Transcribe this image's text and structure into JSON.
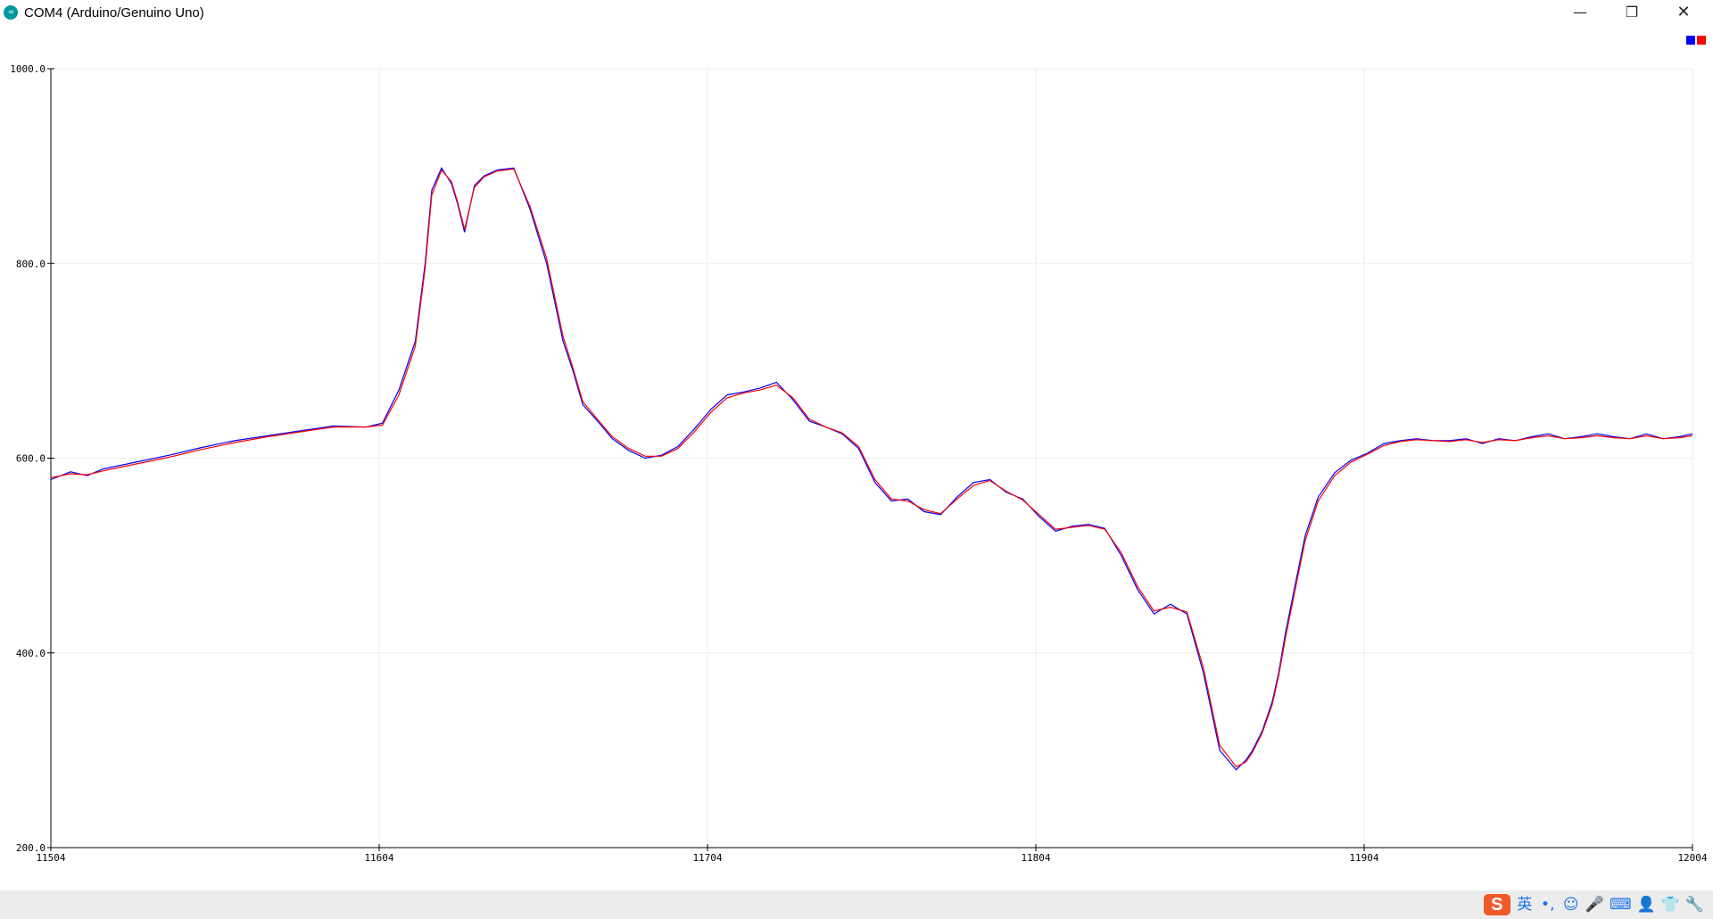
{
  "window": {
    "title": "COM4 (Arduino/Genuino Uno)",
    "app_icon": "arduino-icon",
    "controls": {
      "minimize": "—",
      "maximize": "❐",
      "close": "✕"
    }
  },
  "chart_data": {
    "type": "line",
    "title": "",
    "xlabel": "",
    "ylabel": "",
    "xlim": [
      11504,
      12004
    ],
    "ylim": [
      200,
      1000
    ],
    "x_ticks": [
      "11504",
      "11604",
      "11704",
      "11804",
      "11904",
      "12004"
    ],
    "y_ticks": [
      "1000.0",
      "800.0",
      "600.0",
      "400.0",
      "200.0"
    ],
    "y_tick_values": [
      1000,
      800,
      600,
      400,
      200
    ],
    "x_tick_values": [
      11504,
      11604,
      11704,
      11804,
      11904,
      12004
    ],
    "grid": true,
    "legend_position": "top-right",
    "series": [
      {
        "color": "#0000ff",
        "x": [
          11504,
          11510,
          11515,
          11520,
          11530,
          11540,
          11550,
          11560,
          11570,
          11580,
          11590,
          11600,
          11605,
          11610,
          11615,
          11618,
          11620,
          11623,
          11626,
          11628,
          11630,
          11633,
          11636,
          11640,
          11645,
          11650,
          11655,
          11660,
          11663,
          11666,
          11670,
          11675,
          11680,
          11685,
          11690,
          11695,
          11700,
          11705,
          11710,
          11715,
          11720,
          11725,
          11730,
          11735,
          11740,
          11745,
          11750,
          11755,
          11760,
          11765,
          11770,
          11775,
          11780,
          11785,
          11790,
          11795,
          11800,
          11805,
          11810,
          11815,
          11820,
          11825,
          11830,
          11835,
          11840,
          11845,
          11850,
          11855,
          11860,
          11865,
          11868,
          11870,
          11873,
          11876,
          11878,
          11880,
          11883,
          11886,
          11890,
          11895,
          11900,
          11905,
          11910,
          11915,
          11920,
          11925,
          11930,
          11935,
          11940,
          11945,
          11950,
          11955,
          11960,
          11965,
          11970,
          11975,
          11980,
          11985,
          11990,
          11995,
          12000,
          12004
        ],
        "values": [
          578,
          586,
          582,
          589,
          596,
          603,
          611,
          618,
          623,
          628,
          633,
          632,
          636,
          670,
          720,
          800,
          875,
          898,
          882,
          860,
          832,
          880,
          890,
          896,
          898,
          855,
          800,
          720,
          690,
          655,
          640,
          620,
          608,
          600,
          603,
          612,
          630,
          650,
          665,
          668,
          672,
          678,
          660,
          638,
          632,
          625,
          610,
          575,
          556,
          558,
          545,
          542,
          560,
          575,
          578,
          565,
          558,
          540,
          525,
          530,
          532,
          528,
          500,
          465,
          440,
          450,
          440,
          380,
          300,
          280,
          290,
          300,
          320,
          350,
          380,
          420,
          470,
          520,
          560,
          585,
          598,
          605,
          615,
          618,
          620,
          618,
          618,
          620,
          615,
          620,
          618,
          622,
          625,
          620,
          622,
          625,
          622,
          620,
          625,
          620,
          622,
          625
        ]
      },
      {
        "color": "#ff0000",
        "x": [
          11504,
          11510,
          11515,
          11520,
          11530,
          11540,
          11550,
          11560,
          11570,
          11580,
          11590,
          11600,
          11605,
          11610,
          11615,
          11618,
          11620,
          11623,
          11626,
          11628,
          11630,
          11633,
          11636,
          11640,
          11645,
          11650,
          11655,
          11660,
          11663,
          11666,
          11670,
          11675,
          11680,
          11685,
          11690,
          11695,
          11700,
          11705,
          11710,
          11715,
          11720,
          11725,
          11730,
          11735,
          11740,
          11745,
          11750,
          11755,
          11760,
          11765,
          11770,
          11775,
          11780,
          11785,
          11790,
          11795,
          11800,
          11805,
          11810,
          11815,
          11820,
          11825,
          11830,
          11835,
          11840,
          11845,
          11850,
          11855,
          11860,
          11865,
          11868,
          11870,
          11873,
          11876,
          11878,
          11880,
          11883,
          11886,
          11890,
          11895,
          11900,
          11905,
          11910,
          11915,
          11920,
          11925,
          11930,
          11935,
          11940,
          11945,
          11950,
          11955,
          11960,
          11965,
          11970,
          11975,
          11980,
          11985,
          11990,
          11995,
          12000,
          12004
        ],
        "values": [
          580,
          584,
          583,
          587,
          594,
          601,
          609,
          616,
          622,
          627,
          632,
          632,
          634,
          665,
          715,
          795,
          870,
          896,
          884,
          862,
          835,
          878,
          889,
          895,
          897,
          858,
          805,
          725,
          693,
          658,
          642,
          622,
          610,
          602,
          602,
          610,
          627,
          647,
          662,
          667,
          670,
          675,
          662,
          640,
          632,
          626,
          612,
          578,
          558,
          556,
          547,
          543,
          558,
          572,
          577,
          566,
          557,
          542,
          527,
          529,
          531,
          527,
          503,
          468,
          443,
          447,
          442,
          385,
          305,
          283,
          288,
          298,
          318,
          347,
          377,
          415,
          465,
          515,
          556,
          582,
          596,
          604,
          613,
          617,
          619,
          618,
          617,
          619,
          616,
          619,
          618,
          621,
          623,
          620,
          621,
          623,
          621,
          620,
          623,
          620,
          621,
          623
        ]
      }
    ]
  },
  "taskbar": {
    "ime_logo": "S",
    "ime_items": [
      {
        "label": "英",
        "icon": "language-mode-icon"
      },
      {
        "label": "•,",
        "icon": "punctuation-icon"
      },
      {
        "label": "☺",
        "icon": "emoji-icon"
      },
      {
        "label": "🎤",
        "icon": "microphone-icon"
      },
      {
        "label": "⌨",
        "icon": "keyboard-icon"
      },
      {
        "label": "👤",
        "icon": "user-icon"
      },
      {
        "label": "👕",
        "icon": "skin-icon"
      },
      {
        "label": "🔧",
        "icon": "wrench-icon"
      }
    ]
  }
}
